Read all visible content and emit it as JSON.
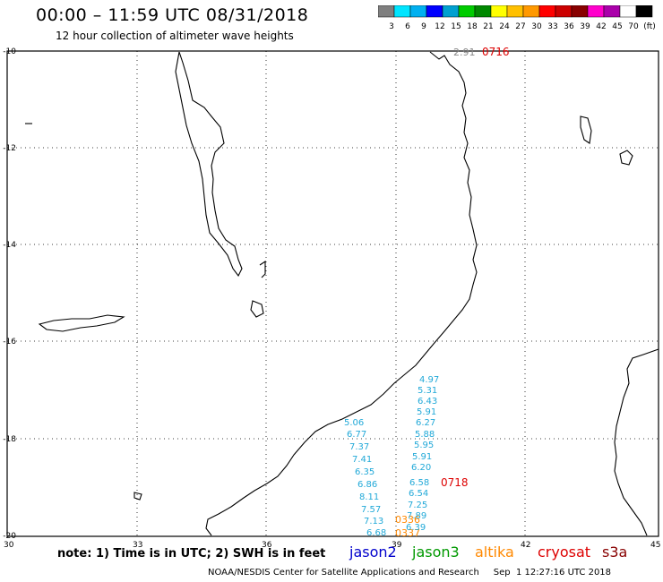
{
  "header": {
    "title": "00:00 – 11:59 UTC 08/31/2018",
    "subtitle": "12 hour collection of altimeter wave heights"
  },
  "scale": {
    "colors": [
      "#7f7f7f",
      "#00e5ff",
      "#00b0f0",
      "#0000ff",
      "#00a0d0",
      "#00cc00",
      "#008800",
      "#ffff00",
      "#ffc000",
      "#ff9900",
      "#ff0000",
      "#cc0000",
      "#880000",
      "#ff00cc",
      "#aa00aa",
      "#ffffff",
      "#000000"
    ],
    "labels": [
      "3",
      "6",
      "9",
      "12",
      "15",
      "18",
      "21",
      "24",
      "27",
      "30",
      "33",
      "36",
      "39",
      "42",
      "45",
      "70",
      "(ft)"
    ]
  },
  "axes": {
    "lon_labels": [
      "30",
      "33",
      "36",
      "39",
      "42",
      "45"
    ],
    "lat_labels": [
      "-10",
      "-12",
      "-14",
      "-16",
      "-18",
      "-20"
    ]
  },
  "annotations": {
    "top_value": "2.91",
    "top_time": "0716",
    "mid_time": "0718",
    "low_time_1": "0336",
    "low_time_2": "0337"
  },
  "track_values": {
    "east": [
      "4.97",
      "5.31",
      "6.43",
      "5.91",
      "6.27",
      "5.88",
      "5.95",
      "5.91",
      "6.20",
      "6.58",
      "6.54",
      "7.25",
      "7.89",
      "6.39"
    ],
    "west": [
      "5.06",
      "6.77",
      "7.37",
      "7.41",
      "6.35",
      "6.86",
      "8.11",
      "7.57",
      "7.13",
      "6.68"
    ]
  },
  "note": "note: 1) Time is in UTC; 2) SWH is in feet",
  "legend": {
    "jason2": "jason2",
    "jason3": "jason3",
    "altika": "altika",
    "cryosat": "cryosat",
    "s3a": "s3a",
    "colors": {
      "jason2": "#0000cc",
      "jason3": "#009900",
      "altika": "#ff8800",
      "cryosat": "#dd0000",
      "s3a": "#880000"
    }
  },
  "footer": "NOAA/NESDIS Center for Satellite Applications and Research     Sep  1 12:27:16 UTC 2018"
}
